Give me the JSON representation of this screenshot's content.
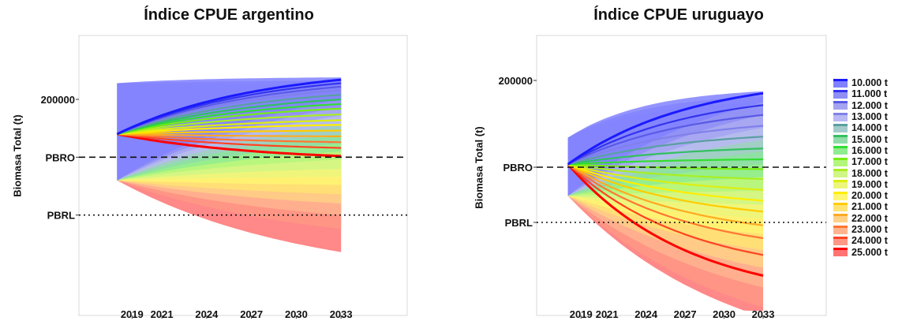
{
  "chart_data": [
    {
      "type": "area",
      "title": "Índice CPUE argentino",
      "xlabel": "",
      "ylabel": "Biomasa Total (t)",
      "x_ticks": [
        2019,
        2021,
        2024,
        2027,
        2030,
        2033
      ],
      "xlim": [
        2016.5,
        2035
      ],
      "y_tick_labels": [
        "200000"
      ],
      "y_ticks": [
        200000
      ],
      "reference_lines": [
        {
          "label": "PBRO",
          "value": 150000,
          "style": "dashed"
        },
        {
          "label": "PBRL",
          "value": 100000,
          "style": "dotted"
        }
      ],
      "ylim": [
        20000,
        245000
      ],
      "start": {
        "year": 2018,
        "value": 170000,
        "band_low": 130000,
        "band_high": 214000
      },
      "series_end_values": [
        217000,
        214000,
        211000,
        208000,
        204000,
        200000,
        196000,
        192000,
        187000,
        182000,
        178000,
        173000,
        168000,
        163000,
        158000,
        151000
      ],
      "band_end_high": [
        219000,
        216000,
        213000,
        210000,
        207000,
        204000,
        201000,
        197000,
        194000,
        190000,
        187000,
        183000,
        180000,
        176000,
        173000,
        170000
      ],
      "band_end_low": [
        200000,
        193000,
        186000,
        178000,
        170000,
        162000,
        155000,
        148000,
        140000,
        133000,
        126000,
        118000,
        110000,
        100000,
        88000,
        68000
      ]
    },
    {
      "type": "area",
      "title": "Índice CPUE uruguayo",
      "xlabel": "",
      "ylabel": "Biomasa Total (t)",
      "x_ticks": [
        2019,
        2021,
        2024,
        2027,
        2030,
        2033
      ],
      "xlim": [
        2016.5,
        2035
      ],
      "y_tick_labels": [
        "200000"
      ],
      "y_ticks": [
        200000
      ],
      "reference_lines": [
        {
          "label": "PBRO",
          "value": 112000,
          "style": "dashed"
        },
        {
          "label": "PBRL",
          "value": 56000,
          "style": "dotted"
        }
      ],
      "ylim": [
        -40000,
        240000
      ],
      "start": {
        "year": 2018,
        "value": 115000,
        "band_low": 83000,
        "band_high": 142000
      },
      "series_end_values": [
        187000,
        175000,
        165000,
        154000,
        143000,
        131000,
        120000,
        110000,
        100000,
        89000,
        78000,
        67000,
        53000,
        40000,
        23000,
        2000
      ],
      "band_end_high": [
        189000,
        184000,
        178000,
        172000,
        166000,
        160000,
        153000,
        145000,
        137000,
        128000,
        118000,
        108000,
        98000,
        88000,
        78000,
        68000
      ],
      "band_end_low": [
        178000,
        165000,
        152000,
        140000,
        128000,
        115000,
        102000,
        88000,
        74000,
        60000,
        44000,
        28000,
        10000,
        -10000,
        -30000,
        -40000
      ]
    }
  ],
  "legend": {
    "labels": [
      "10.000 t",
      "11.000 t",
      "12.000 t",
      "13.000 t",
      "14.000 t",
      "15.000 t",
      "16.000 t",
      "17.000 t",
      "18.000 t",
      "19.000 t",
      "20.000 t",
      "21.000 t",
      "22.000 t",
      "23.000 t",
      "24.000 t",
      "25.000 t"
    ],
    "colors": [
      "#1a1aff",
      "#3333ee",
      "#5a5ae6",
      "#8080ea",
      "#5aa0a0",
      "#33c060",
      "#33dd33",
      "#77ee11",
      "#aaee22",
      "#ddee11",
      "#ffee00",
      "#ffcc00",
      "#ffaa22",
      "#ff7733",
      "#ff4422",
      "#ff0000"
    ]
  }
}
